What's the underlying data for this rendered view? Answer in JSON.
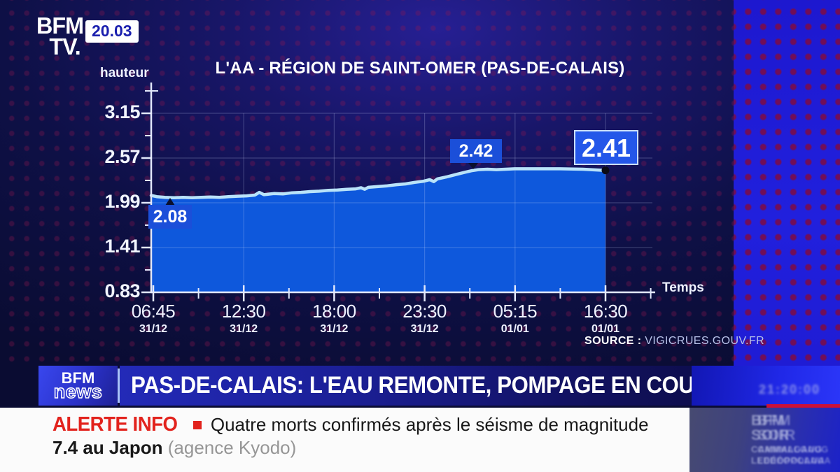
{
  "header": {
    "channel_line1": "BFM",
    "channel_line2": "TV.",
    "time": "20.03"
  },
  "chart": {
    "title": "L'AA - RÉGION DE SAINT-OMER (PAS-DE-CALAIS)",
    "y_axis_label": "hauteur",
    "x_axis_label": "Temps",
    "source_label": "SOURCE :",
    "source_value": "VIGICRUES.GOUV.FR"
  },
  "chart_data": {
    "type": "area",
    "title": "L'AA - RÉGION DE SAINT-OMER (PAS-DE-CALAIS)",
    "ylabel": "hauteur",
    "xlabel": "Temps",
    "ylim": [
      0.83,
      3.15
    ],
    "y_ticks": [
      "3.15",
      "2.57",
      "1.99",
      "1.41",
      "0.83"
    ],
    "x_ticks": [
      {
        "time": "06:45",
        "date": "31/12"
      },
      {
        "time": "12:30",
        "date": "31/12"
      },
      {
        "time": "18:00",
        "date": "31/12"
      },
      {
        "time": "23:30",
        "date": "31/12"
      },
      {
        "time": "05:15",
        "date": "01/01"
      },
      {
        "time": "16:30",
        "date": "01/01"
      }
    ],
    "annotations": [
      {
        "label": "2.08",
        "value": 2.08,
        "position": "start"
      },
      {
        "label": "2.42",
        "value": 2.42,
        "position": "peak"
      },
      {
        "label": "2.41",
        "value": 2.41,
        "position": "end"
      }
    ],
    "grid": true,
    "legend": "none",
    "colors": {
      "fill": "#0e58dc",
      "line": "#b9e3f9",
      "axis": "#e2e8fb",
      "annotation_box": "#1b4fd9",
      "background": "#10124a"
    },
    "series": [
      {
        "name": "hauteur (m)",
        "points": [
          [
            0.0,
            2.085
          ],
          [
            0.012,
            2.07
          ],
          [
            0.03,
            2.06
          ],
          [
            0.05,
            2.055
          ],
          [
            0.07,
            2.06
          ],
          [
            0.09,
            2.055
          ],
          [
            0.11,
            2.06
          ],
          [
            0.13,
            2.065
          ],
          [
            0.15,
            2.06
          ],
          [
            0.17,
            2.07
          ],
          [
            0.19,
            2.075
          ],
          [
            0.21,
            2.08
          ],
          [
            0.228,
            2.09
          ],
          [
            0.238,
            2.125
          ],
          [
            0.248,
            2.095
          ],
          [
            0.27,
            2.11
          ],
          [
            0.29,
            2.105
          ],
          [
            0.31,
            2.12
          ],
          [
            0.33,
            2.125
          ],
          [
            0.35,
            2.135
          ],
          [
            0.37,
            2.14
          ],
          [
            0.39,
            2.15
          ],
          [
            0.41,
            2.155
          ],
          [
            0.43,
            2.165
          ],
          [
            0.45,
            2.17
          ],
          [
            0.462,
            2.185
          ],
          [
            0.47,
            2.165
          ],
          [
            0.478,
            2.19
          ],
          [
            0.5,
            2.2
          ],
          [
            0.52,
            2.21
          ],
          [
            0.54,
            2.225
          ],
          [
            0.56,
            2.235
          ],
          [
            0.58,
            2.255
          ],
          [
            0.6,
            2.27
          ],
          [
            0.613,
            2.29
          ],
          [
            0.622,
            2.265
          ],
          [
            0.63,
            2.3
          ],
          [
            0.65,
            2.325
          ],
          [
            0.67,
            2.355
          ],
          [
            0.69,
            2.385
          ],
          [
            0.705,
            2.405
          ],
          [
            0.72,
            2.42
          ],
          [
            0.74,
            2.425
          ],
          [
            0.76,
            2.42
          ],
          [
            0.8,
            2.43
          ],
          [
            0.85,
            2.43
          ],
          [
            0.9,
            2.43
          ],
          [
            0.95,
            2.425
          ],
          [
            1.0,
            2.41
          ]
        ]
      }
    ]
  },
  "banner": {
    "logo_line1": "BFM",
    "logo_line2": "news",
    "headline": "PAS-DE-CALAIS: L'EAU REMONTE, POMPAGE EN COURS",
    "clock": "21:20:00"
  },
  "alert": {
    "tag": "ALERTE INFO",
    "line1": "Quatre morts confirmés après le séisme de magnitude",
    "line2_bold": "7.4 au Japon",
    "line2_gray": "(agence Kyodo)"
  },
  "side_panel": {
    "line1": "BFM",
    "line2": "SOIR",
    "line3": "CAMMALGAUG",
    "line4": "LEDÉOPOLAUA"
  }
}
